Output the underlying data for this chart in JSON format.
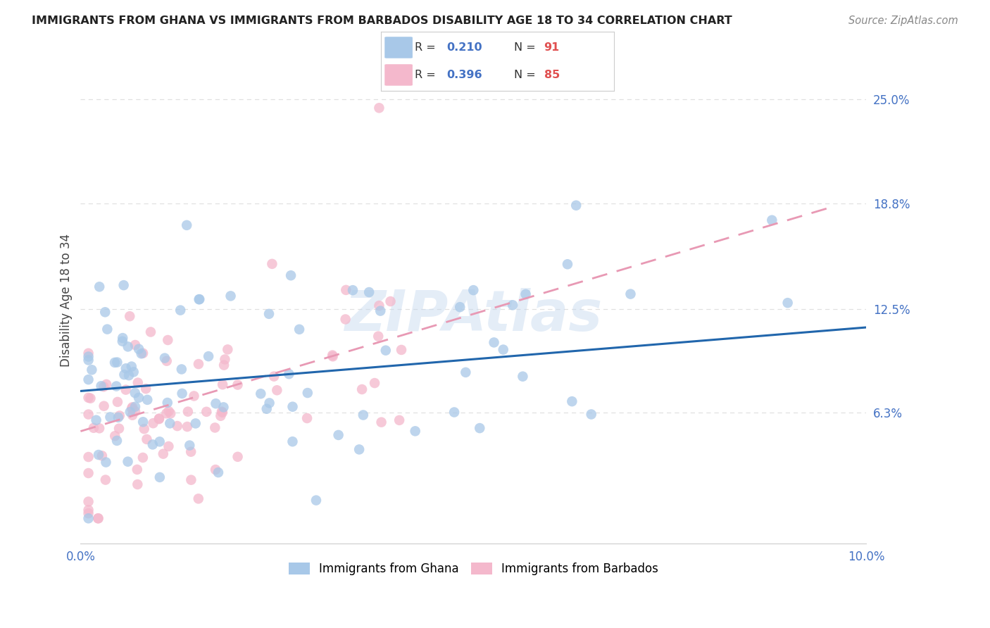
{
  "title": "IMMIGRANTS FROM GHANA VS IMMIGRANTS FROM BARBADOS DISABILITY AGE 18 TO 34 CORRELATION CHART",
  "source": "Source: ZipAtlas.com",
  "ylabel": "Disability Age 18 to 34",
  "watermark": "ZIPAtlas",
  "xlim": [
    0.0,
    0.1
  ],
  "ylim": [
    -0.015,
    0.275
  ],
  "ytick_right_values": [
    0.063,
    0.125,
    0.188,
    0.25
  ],
  "ytick_right_labels": [
    "6.3%",
    "12.5%",
    "18.8%",
    "25.0%"
  ],
  "ghana_color": "#a8c8e8",
  "barbados_color": "#f4b8cc",
  "ghana_line_color": "#2166ac",
  "barbados_line_color": "#e899b4",
  "ghana_R": 0.21,
  "ghana_N": 91,
  "barbados_R": 0.396,
  "barbados_N": 85,
  "ghana_line_x0": 0.0,
  "ghana_line_y0": 0.076,
  "ghana_line_x1": 0.1,
  "ghana_line_y1": 0.114,
  "barbados_line_x0": 0.0,
  "barbados_line_y0": 0.052,
  "barbados_line_x1": 0.095,
  "barbados_line_y1": 0.185,
  "background_color": "#ffffff",
  "grid_color": "#e0e0e0",
  "title_color": "#222222",
  "right_tick_color": "#4472c4",
  "legend_R_color": "#4472c4",
  "legend_N_color": "#e05050"
}
